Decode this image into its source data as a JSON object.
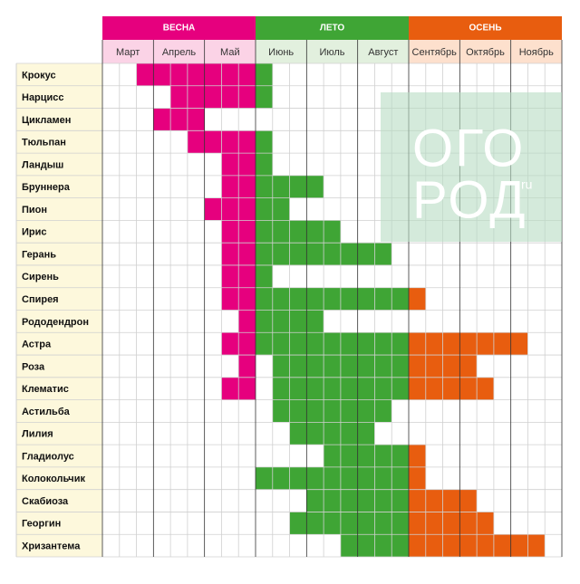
{
  "chart_data": {
    "type": "bloom-calendar",
    "seasons": [
      {
        "name": "ВЕСНА",
        "color": "#e6007e",
        "light": "#fbd3e6"
      },
      {
        "name": "ЛЕТО",
        "color": "#3fa535",
        "light": "#e2f0de"
      },
      {
        "name": "ОСЕНЬ",
        "color": "#e85d0f",
        "light": "#fde0cd"
      }
    ],
    "months": [
      "Март",
      "Апрель",
      "Май",
      "Июнь",
      "Июль",
      "Август",
      "Сентябрь",
      "Октябрь",
      "Ноябрь"
    ],
    "decades_per_month": 3,
    "rows": [
      {
        "name": "Крокус",
        "ranges": [
          [
            2,
            9
          ]
        ]
      },
      {
        "name": "Нарцисс",
        "ranges": [
          [
            4,
            9
          ]
        ]
      },
      {
        "name": "Цикламен",
        "ranges": [
          [
            3,
            5
          ]
        ]
      },
      {
        "name": "Тюльпан",
        "ranges": [
          [
            5,
            9
          ]
        ]
      },
      {
        "name": "Ландыш",
        "ranges": [
          [
            7,
            9
          ]
        ]
      },
      {
        "name": "Бруннера",
        "ranges": [
          [
            7,
            12
          ]
        ]
      },
      {
        "name": "Пион",
        "ranges": [
          [
            6,
            10
          ]
        ]
      },
      {
        "name": "Ирис",
        "ranges": [
          [
            7,
            13
          ]
        ]
      },
      {
        "name": "Герань",
        "ranges": [
          [
            7,
            16
          ]
        ]
      },
      {
        "name": "Сирень",
        "ranges": [
          [
            7,
            9
          ]
        ]
      },
      {
        "name": "Спирея",
        "ranges": [
          [
            7,
            18
          ]
        ]
      },
      {
        "name": "Рододендрон",
        "ranges": [
          [
            8,
            12
          ]
        ]
      },
      {
        "name": "Астра",
        "ranges": [
          [
            7,
            24
          ]
        ]
      },
      {
        "name": "Роза",
        "ranges": [
          [
            8,
            8
          ],
          [
            10,
            21
          ]
        ]
      },
      {
        "name": "Клематис",
        "ranges": [
          [
            7,
            8
          ],
          [
            10,
            22
          ]
        ]
      },
      {
        "name": "Астильба",
        "ranges": [
          [
            10,
            16
          ]
        ]
      },
      {
        "name": "Лилия",
        "ranges": [
          [
            11,
            15
          ]
        ]
      },
      {
        "name": "Гладиолус",
        "ranges": [
          [
            13,
            18
          ]
        ]
      },
      {
        "name": "Колокольчик",
        "ranges": [
          [
            9,
            18
          ]
        ]
      },
      {
        "name": "Скабиоза",
        "ranges": [
          [
            12,
            21
          ]
        ]
      },
      {
        "name": "Георгин",
        "ranges": [
          [
            11,
            22
          ]
        ]
      },
      {
        "name": "Хризантема",
        "ranges": [
          [
            14,
            25
          ]
        ]
      }
    ],
    "watermark": {
      "line1": "ОГО",
      "line2": "РОД",
      "suffix": "ru"
    }
  }
}
